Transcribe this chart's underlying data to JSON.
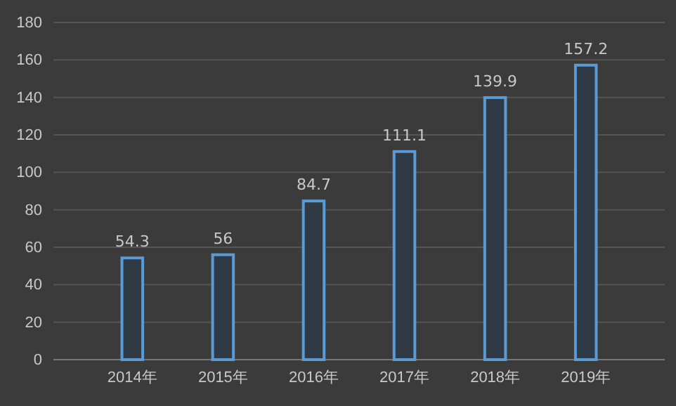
{
  "chart_data": {
    "type": "bar",
    "categories": [
      "2014年",
      "2015年",
      "2016年",
      "2017年",
      "2018年",
      "2019年"
    ],
    "values": [
      54.3,
      56,
      84.7,
      111.1,
      139.9,
      157.2
    ],
    "color": "#5b9bd5",
    "ylim": [
      0,
      180
    ],
    "yticks": [
      0,
      20,
      40,
      60,
      80,
      100,
      120,
      140,
      160,
      180
    ],
    "grid": "y",
    "data_labels": true
  }
}
